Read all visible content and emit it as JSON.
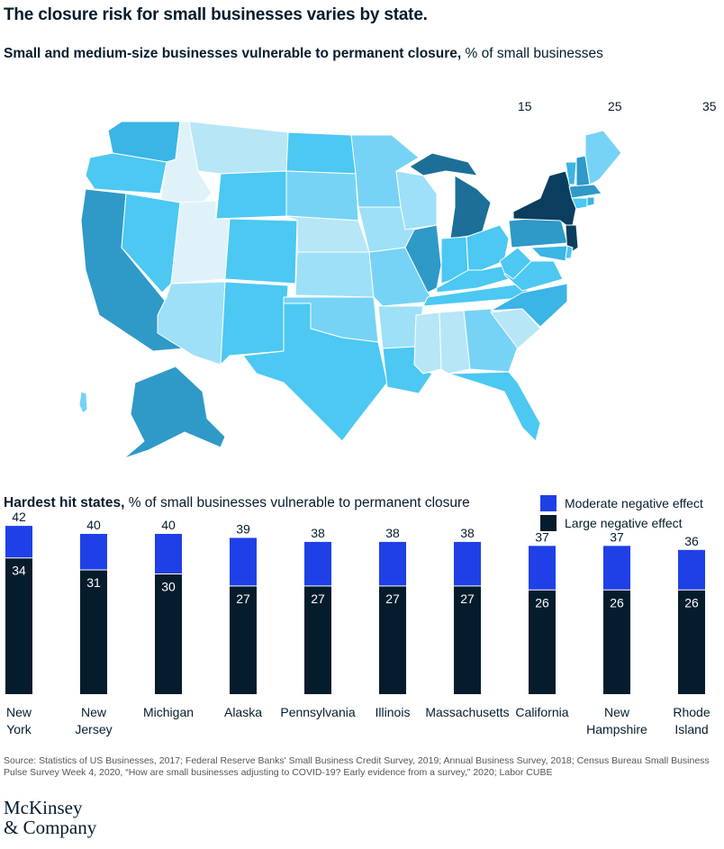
{
  "title": "The closure risk for small businesses varies by state.",
  "map": {
    "subtitle_bold": "Small and medium-size businesses vulnerable to permanent closure,",
    "subtitle_rest": " % of small businesses",
    "scale_labels": [
      "15",
      "25",
      "35"
    ],
    "colors": {
      "c1": "#dff2fa",
      "c2": "#b7e6f7",
      "c3": "#9ee0f8",
      "c4": "#76d3f5",
      "c5": "#4cc8f2",
      "c6": "#3bb4e6",
      "c7": "#2f99c8",
      "c8": "#1d6f98",
      "c9": "#0b3d5e"
    }
  },
  "bar_chart": {
    "subtitle_bold": "Hardest hit states,",
    "subtitle_rest": " % of small businesses vulnerable to permanent closure",
    "legend": [
      {
        "label": "Moderate negative effect",
        "color": "#1f40e6"
      },
      {
        "label": "Large negative effect",
        "color": "#051c2c"
      }
    ]
  },
  "chart_data": {
    "type": "bar",
    "stacked": true,
    "categories": [
      "New York",
      "New Jersey",
      "Michigan",
      "Alaska",
      "Pennsylvania",
      "Illinois",
      "Massachusetts",
      "California",
      "New Hampshire",
      "Rhode Island"
    ],
    "category_lines": [
      [
        "New",
        "York"
      ],
      [
        "New",
        "Jersey"
      ],
      [
        "Michigan"
      ],
      [
        "Alaska"
      ],
      [
        "Pennsylvania"
      ],
      [
        "Illinois"
      ],
      [
        "Massachusetts"
      ],
      [
        "California"
      ],
      [
        "New",
        "Hampshire"
      ],
      [
        "Rhode",
        "Island"
      ]
    ],
    "series": [
      {
        "name": "Large negative effect",
        "values": [
          34,
          31,
          30,
          27,
          27,
          27,
          27,
          26,
          26,
          26
        ]
      },
      {
        "name": "Moderate negative effect",
        "values": [
          8,
          9,
          10,
          12,
          11,
          11,
          11,
          11,
          11,
          10
        ]
      }
    ],
    "totals": [
      42,
      40,
      40,
      39,
      38,
      38,
      38,
      37,
      37,
      36
    ],
    "colors": {
      "Large negative effect": "#051c2c",
      "Moderate negative effect": "#1f40e6"
    }
  },
  "footer": {
    "source": "Source: Statistics of US Businesses, 2017; Federal Reserve Banks' Small Business Credit Survey, 2019; Annual Business Survey, 2018; Census Bureau Small Business Pulse Survey Week 4, 2020, “How are small businesses adjusting to COVID-19? Early evidence from a survey,” 2020; Labor CUBE"
  },
  "logo": {
    "line1": "McKinsey",
    "line2": "& Company"
  }
}
